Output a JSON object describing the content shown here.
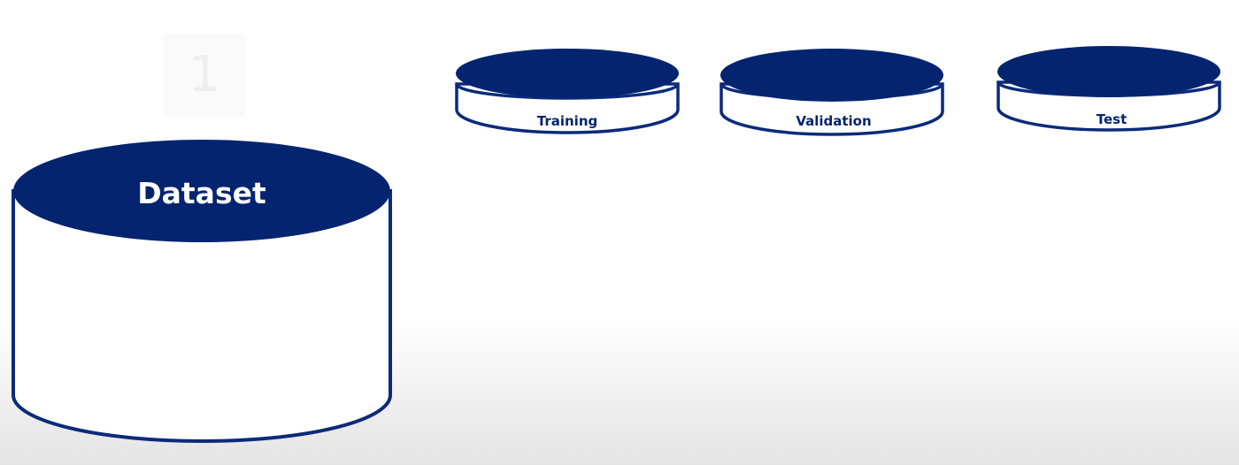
{
  "step_number": "1",
  "dataset": {
    "label": "Dataset"
  },
  "splits": [
    {
      "label": "Training"
    },
    {
      "label": "Validation"
    },
    {
      "label": "Test"
    }
  ],
  "colors": {
    "navy": "#042470",
    "outline": "#0b2a7a",
    "fill": "#ffffff"
  }
}
